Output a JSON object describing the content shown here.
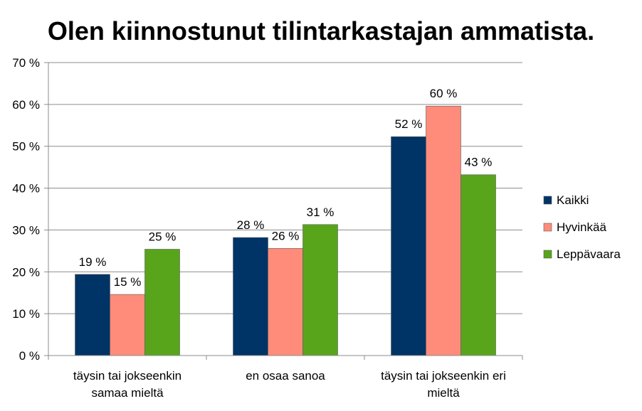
{
  "chart_data": {
    "type": "bar",
    "title": "Olen kiinnostunut tilintarkastajan ammatista.",
    "categories": [
      [
        "täysin tai jokseenkin",
        "samaa mieltä"
      ],
      [
        "en osaa sanoa"
      ],
      [
        "täysin tai jokseenkin eri",
        "mieltä"
      ]
    ],
    "series": [
      {
        "name": "Kaikki",
        "color": "#003366",
        "values": [
          19.4,
          28.2,
          52.3
        ],
        "labels": [
          "19 %",
          "28 %",
          "52 %"
        ]
      },
      {
        "name": "Hyvinkää",
        "color": "#ff8c7a",
        "values": [
          14.6,
          25.6,
          59.6
        ],
        "labels": [
          "15 %",
          "26 %",
          "60 %"
        ]
      },
      {
        "name": "Leppävaara",
        "color": "#58a51c",
        "values": [
          25.4,
          31.3,
          43.2
        ],
        "labels": [
          "25 %",
          "31 %",
          "43 %"
        ]
      }
    ],
    "ylim": [
      0,
      70
    ],
    "yticks": [
      0,
      10,
      20,
      30,
      40,
      50,
      60,
      70
    ],
    "ytick_labels": [
      "0 %",
      "10 %",
      "20 %",
      "30 %",
      "40 %",
      "50 %",
      "60 %",
      "70 %"
    ],
    "grid": true,
    "legend_position": "right"
  }
}
